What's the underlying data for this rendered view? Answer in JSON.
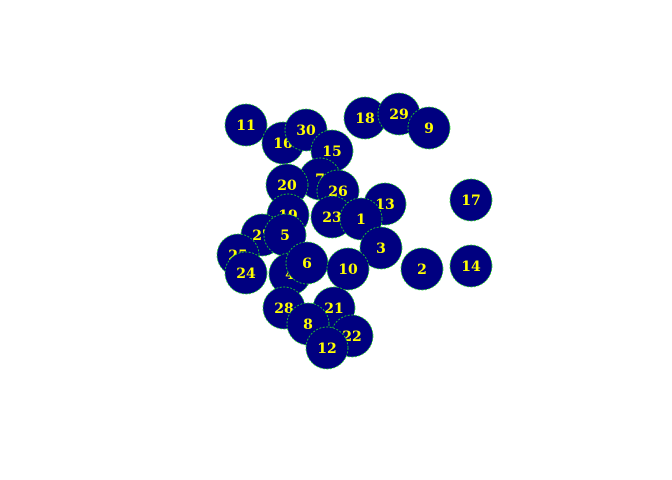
{
  "colors": {
    "node_fill": "#000080",
    "node_border": "#22dd22",
    "label": "#ffff00",
    "edge": "#c8a050",
    "background": "#ffffff"
  },
  "nodes": [
    "11",
    "16",
    "30",
    "18",
    "29",
    "9",
    "15",
    "7",
    "20",
    "26",
    "13",
    "17",
    "19",
    "23",
    "1",
    "27",
    "5",
    "3",
    "25",
    "24",
    "4",
    "6",
    "10",
    "2",
    "14",
    "28",
    "21",
    "8",
    "22",
    "12"
  ]
}
